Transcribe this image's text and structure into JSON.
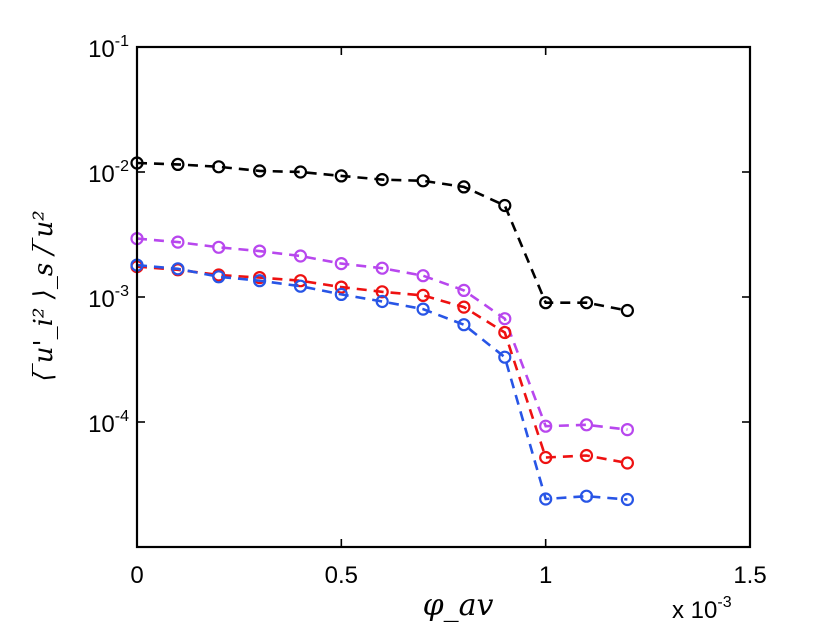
{
  "chart_data": {
    "type": "line",
    "title": "",
    "xlabel": "φ_av",
    "ylabel": "⟨ ̅u'_i² ⟩_s / ̅u²",
    "x_multiplier": "x 10",
    "x_multiplier_exp": "-3",
    "xlim": [
      0,
      1.5
    ],
    "ylim_log10": [
      -5,
      -1
    ],
    "x_tick_labels": [
      "0",
      "0.5",
      "1",
      "1.5"
    ],
    "x_tick_values": [
      0,
      0.5,
      1.0,
      1.5
    ],
    "y_tick_labels": [
      {
        "base": "10",
        "exp": "-1",
        "value": 0.1
      },
      {
        "base": "10",
        "exp": "-2",
        "value": 0.01
      },
      {
        "base": "10",
        "exp": "-3",
        "value": 0.001
      },
      {
        "base": "10",
        "exp": "-4",
        "value": 0.0001
      }
    ],
    "x": [
      0,
      0.1,
      0.2,
      0.3,
      0.4,
      0.5,
      0.6,
      0.7,
      0.8,
      0.9,
      1.0,
      1.1,
      1.2
    ],
    "series": [
      {
        "name": "black",
        "color": "#000000",
        "values": [
          0.0118,
          0.0115,
          0.011,
          0.0102,
          0.01,
          0.0093,
          0.0087,
          0.0085,
          0.0076,
          0.0054,
          0.0009,
          0.0009,
          0.00078
        ]
      },
      {
        "name": "purple",
        "color": "#b847ee",
        "values": [
          0.00293,
          0.00275,
          0.0025,
          0.00233,
          0.00213,
          0.00185,
          0.0017,
          0.00148,
          0.00113,
          0.00067,
          9.25e-05,
          9.5e-05,
          8.7e-05
        ]
      },
      {
        "name": "red",
        "color": "#ee1111",
        "values": [
          0.00175,
          0.00165,
          0.0015,
          0.00143,
          0.00135,
          0.0012,
          0.0011,
          0.00103,
          0.00083,
          0.00052,
          5.2e-05,
          5.4e-05,
          4.7e-05
        ]
      },
      {
        "name": "blue",
        "color": "#2855e6",
        "values": [
          0.0018,
          0.00168,
          0.00145,
          0.00135,
          0.00122,
          0.00105,
          0.00092,
          0.0008,
          0.0006,
          0.00033,
          2.42e-05,
          2.55e-05,
          2.4e-05
        ]
      }
    ]
  }
}
